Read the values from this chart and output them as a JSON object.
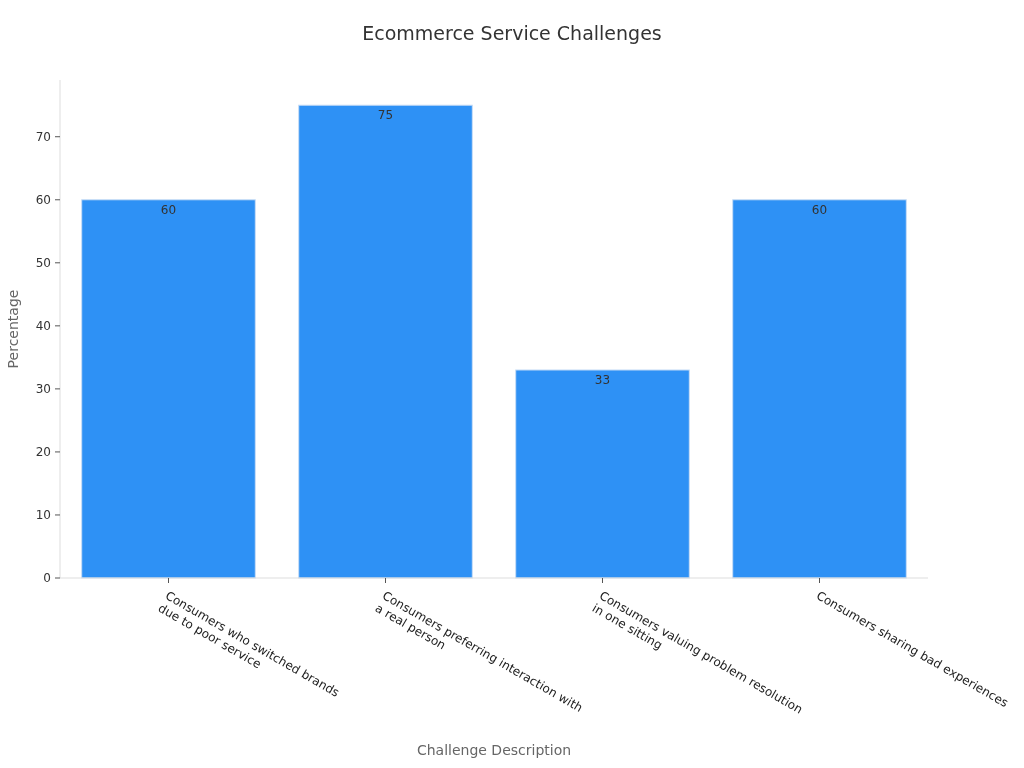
{
  "chart_data": {
    "type": "bar",
    "title": "Ecommerce Service Challenges",
    "xlabel": "Challenge Description",
    "ylabel": "Percentage",
    "categories": [
      "Consumers who switched brands\ndue to poor service",
      "Consumers preferring interaction with\na real person",
      "Consumers valuing problem resolution\nin one sitting",
      "Consumers sharing bad experiences"
    ],
    "values": [
      60,
      75,
      33,
      60
    ],
    "color": "#2e91f5",
    "ylim": [
      0,
      79
    ],
    "yticks": [
      0,
      10,
      20,
      30,
      40,
      50,
      60,
      70
    ],
    "grid": false,
    "data_labels": true
  }
}
